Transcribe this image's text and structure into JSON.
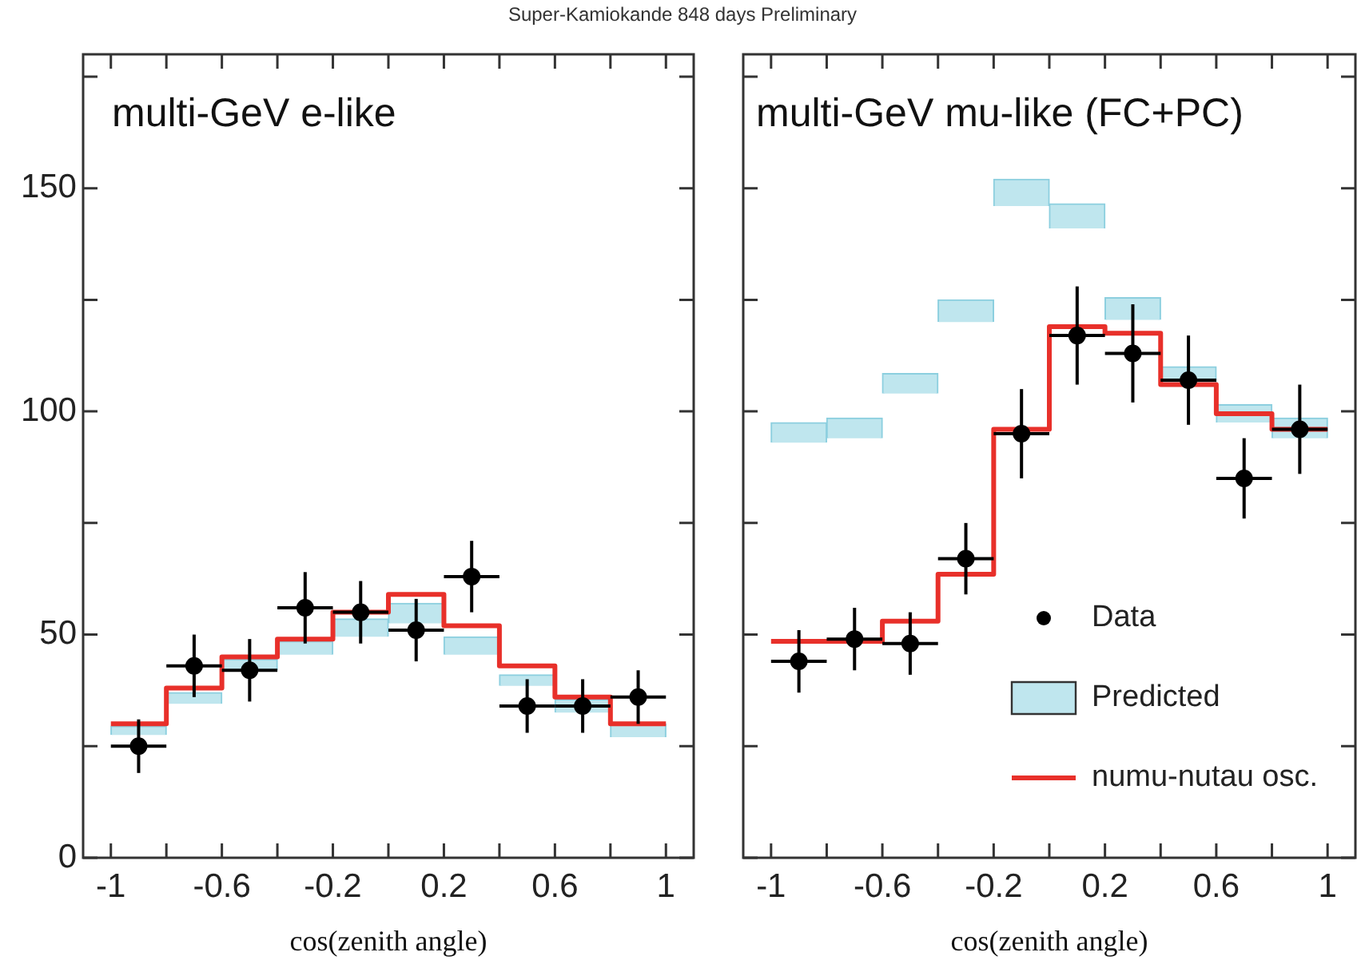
{
  "chart_data": [
    {
      "type": "bar",
      "title": "Super-Kamiokande 848 days Preliminary",
      "xlabel": "cos(zenith angle)",
      "annotations": [
        "multi-GeV e-like"
      ],
      "xlim": [
        -1,
        1
      ],
      "ylim": [
        0,
        180
      ],
      "xticks": [
        -1,
        {
          "value": -0.8,
          "label": null
        },
        -0.6,
        {
          "value": -0.4,
          "label": null
        },
        -0.2,
        {
          "value": 0,
          "label": null
        },
        0.2,
        {
          "value": 0.4,
          "label": null
        },
        0.6,
        {
          "value": 0.8,
          "label": null
        },
        1
      ],
      "yticks": [
        0,
        {
          "value": 25,
          "label": null
        },
        50,
        {
          "value": 75,
          "label": null
        },
        100,
        {
          "value": 125,
          "label": null
        },
        150,
        {
          "value": 175,
          "label": null
        }
      ],
      "legend": false,
      "series": [
        {
          "type": "scatter",
          "color": "#000000",
          "marker": "circle",
          "x": [
            -0.9,
            -0.7,
            -0.5,
            -0.3,
            -0.1,
            0.1,
            0.3,
            0.5,
            0.7,
            0.9
          ],
          "values": [
            25,
            43,
            42,
            56,
            55,
            51,
            63,
            34,
            34,
            36
          ],
          "errors": [
            6,
            7,
            7,
            8,
            7,
            7,
            8,
            6,
            6,
            6
          ],
          "xerrors": [
            0.1,
            0.1,
            0.1,
            0.1,
            0.1,
            0.1,
            0.1,
            0.1,
            0.1,
            0.1
          ]
        },
        {
          "color": "#bfe6ee",
          "x": [
            -0.9,
            -0.7,
            -0.5,
            -0.3,
            -0.1,
            0.1,
            0.3,
            0.5,
            0.7,
            0.9
          ],
          "base": [
            27.5,
            34.5,
            42,
            45.5,
            49.5,
            52.5,
            45.5,
            38.5,
            32.5,
            27
          ],
          "values": [
            2,
            2.5,
            2.5,
            3,
            4,
            4.5,
            4,
            2.5,
            3,
            3
          ]
        },
        {
          "type": "step",
          "color": "#e8302a",
          "x": [
            -1,
            -0.8,
            -0.6,
            -0.4,
            -0.2,
            0,
            0.2,
            0.4,
            0.6,
            0.8,
            1
          ],
          "values": [
            30,
            38,
            45,
            49,
            55,
            59,
            52,
            43,
            36,
            30,
            30
          ]
        }
      ]
    },
    {
      "type": "bar",
      "xlabel": "cos(zenith angle)",
      "annotations": [
        "multi-GeV mu-like (FC+PC)"
      ],
      "xlim": [
        -1,
        1
      ],
      "ylim": [
        0,
        180
      ],
      "tick_labels": "x",
      "xticks": [
        -1,
        {
          "value": -0.8,
          "label": null
        },
        -0.6,
        {
          "value": -0.4,
          "label": null
        },
        -0.2,
        {
          "value": 0,
          "label": null
        },
        0.2,
        {
          "value": 0.4,
          "label": null
        },
        0.6,
        {
          "value": 0.8,
          "label": null
        },
        1
      ],
      "yticks": [
        0,
        {
          "value": 25,
          "label": null
        },
        50,
        {
          "value": 75,
          "label": null
        },
        100,
        {
          "value": 125,
          "label": null
        },
        150,
        {
          "value": 175,
          "label": null
        }
      ],
      "legend": "bottom right",
      "series": [
        {
          "type": "scatter",
          "name": "Data",
          "color": "#000000",
          "marker": "circle",
          "x": [
            -0.9,
            -0.7,
            -0.5,
            -0.3,
            -0.1,
            0.1,
            0.3,
            0.5,
            0.7,
            0.9
          ],
          "values": [
            44,
            49,
            48,
            67,
            95,
            117,
            113,
            107,
            85,
            96
          ],
          "errors": [
            7,
            7,
            7,
            8,
            10,
            11,
            11,
            10,
            9,
            10
          ],
          "xerrors": [
            0.1,
            0.1,
            0.1,
            0.1,
            0.1,
            0.1,
            0.1,
            0.1,
            0.1,
            0.1
          ]
        },
        {
          "name": "Predicted",
          "color": "#bfe6ee",
          "x": [
            -0.9,
            -0.7,
            -0.5,
            -0.3,
            -0.1,
            0.1,
            0.3,
            0.5,
            0.7,
            0.9
          ],
          "base": [
            93,
            94,
            104,
            120,
            146,
            141,
            120.5,
            105.5,
            97.5,
            94
          ],
          "values": [
            4.5,
            4.5,
            4.5,
            5,
            6,
            5.5,
            5,
            4.5,
            4,
            4.5
          ]
        },
        {
          "type": "step",
          "name": "numu-nutau osc.",
          "color": "#e8302a",
          "x": [
            -1,
            -0.8,
            -0.6,
            -0.4,
            -0.2,
            0,
            0.2,
            0.4,
            0.6,
            0.8,
            1
          ],
          "values": [
            48.5,
            48.5,
            53,
            63.5,
            96,
            119,
            117.5,
            106,
            99.5,
            96,
            96
          ]
        }
      ]
    }
  ]
}
